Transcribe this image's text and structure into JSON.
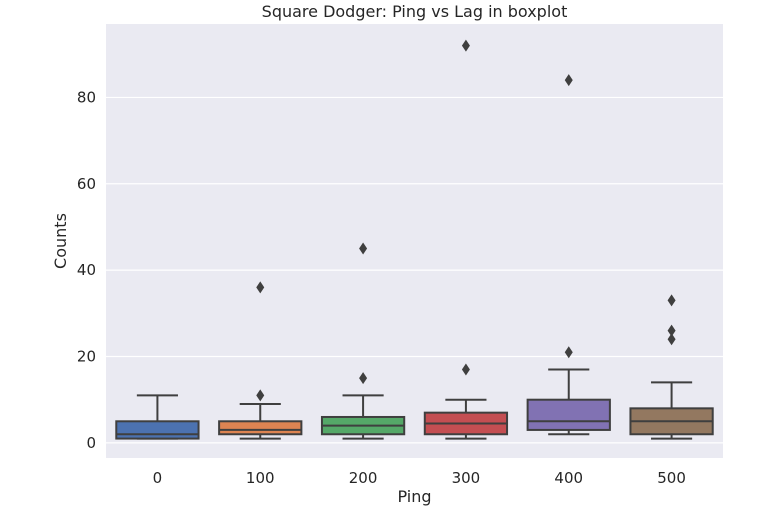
{
  "chart_data": {
    "type": "boxplot",
    "title": "Square Dodger: Ping vs Lag in boxplot",
    "xlabel": "Ping",
    "ylabel": "Counts",
    "categories": [
      "0",
      "100",
      "200",
      "300",
      "400",
      "500"
    ],
    "yticks": [
      0,
      20,
      40,
      60,
      80
    ],
    "ylim": [
      -3.5,
      97
    ],
    "grid": true,
    "boxes": [
      {
        "category": "0",
        "whisker_low": 1,
        "q1": 1,
        "median": 2,
        "q3": 5,
        "whisker_high": 11,
        "outliers": [],
        "color": "#4c72b0"
      },
      {
        "category": "100",
        "whisker_low": 1,
        "q1": 2,
        "median": 3,
        "q3": 5,
        "whisker_high": 9,
        "outliers": [
          11,
          36
        ],
        "color": "#dd8452"
      },
      {
        "category": "200",
        "whisker_low": 1,
        "q1": 2,
        "median": 4,
        "q3": 6,
        "whisker_high": 11,
        "outliers": [
          15,
          45
        ],
        "color": "#55a868"
      },
      {
        "category": "300",
        "whisker_low": 1,
        "q1": 2,
        "median": 4.5,
        "q3": 7,
        "whisker_high": 10,
        "outliers": [
          17,
          92
        ],
        "color": "#c44e52"
      },
      {
        "category": "400",
        "whisker_low": 2,
        "q1": 3,
        "median": 5,
        "q3": 10,
        "whisker_high": 17,
        "outliers": [
          21,
          84
        ],
        "color": "#8172b3"
      },
      {
        "category": "500",
        "whisker_low": 1,
        "q1": 2,
        "median": 5,
        "q3": 8,
        "whisker_high": 14,
        "outliers": [
          24,
          26,
          33
        ],
        "color": "#937860"
      }
    ]
  }
}
